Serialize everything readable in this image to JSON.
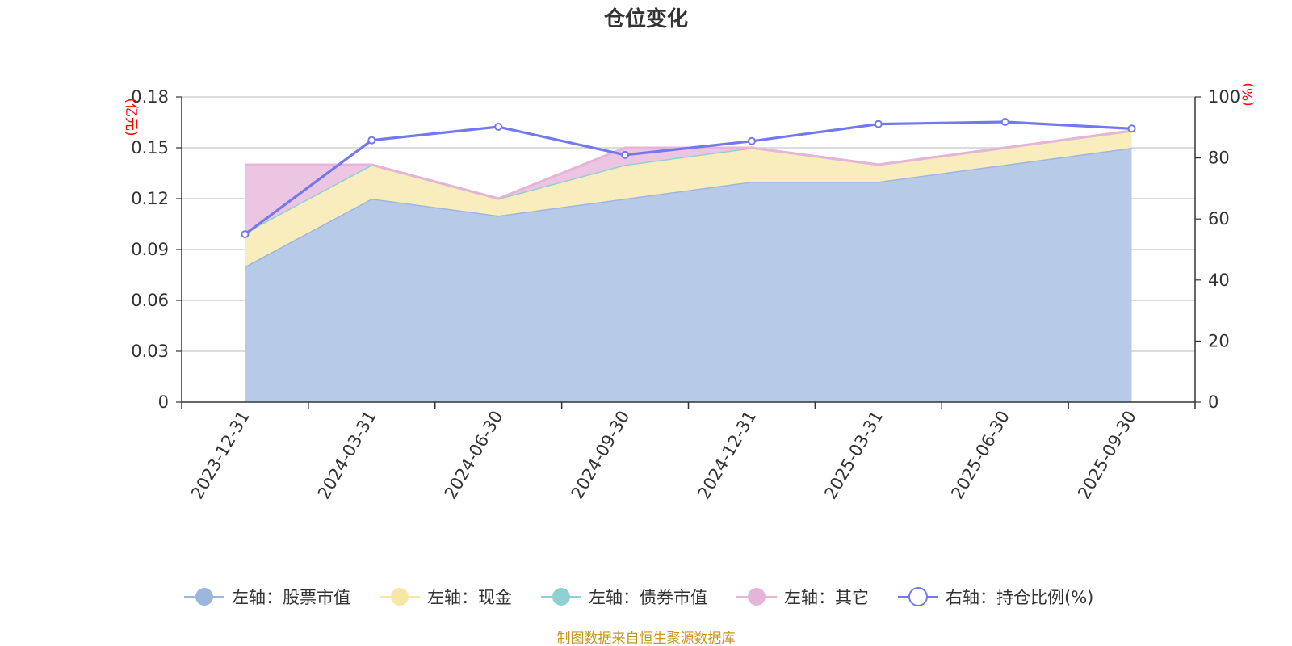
{
  "chart_data": {
    "type": "area",
    "title": "仓位变化",
    "categories": [
      "2023-12-31",
      "2024-03-31",
      "2024-06-30",
      "2024-09-30",
      "2024-12-31",
      "2025-03-31",
      "2025-06-30",
      "2025-09-30"
    ],
    "left_axis": {
      "unit": "(亿元)",
      "ylim": [
        0,
        0.18
      ],
      "ticks": [
        "0",
        "0.03",
        "0.06",
        "0.09",
        "0.12",
        "0.15",
        "0.18"
      ],
      "tick_values": [
        0,
        0.03,
        0.06,
        0.09,
        0.12,
        0.15,
        0.18
      ]
    },
    "right_axis": {
      "unit": "(%)",
      "ylim": [
        0,
        100
      ],
      "ticks": [
        "0",
        "20",
        "40",
        "60",
        "80",
        "100"
      ],
      "tick_values": [
        0,
        20,
        40,
        60,
        80,
        100
      ]
    },
    "series": [
      {
        "name": "左轴：股票市值",
        "axis": "left",
        "kind": "area-stacked",
        "color": "#9db6e0",
        "fill": "#b7cbe9",
        "values": [
          0.08,
          0.12,
          0.11,
          0.12,
          0.13,
          0.13,
          0.14,
          0.15
        ]
      },
      {
        "name": "左轴：现金",
        "axis": "left",
        "kind": "area-stacked",
        "color": "#f8e6a5",
        "fill": "#f9ecbd",
        "values": [
          0.02,
          0.02,
          0.01,
          0.02,
          0.02,
          0.01,
          0.01,
          0.01
        ]
      },
      {
        "name": "左轴：债券市值",
        "axis": "left",
        "kind": "area-stacked",
        "color": "#8fd1d3",
        "fill": "#a8dcdd",
        "values": [
          0,
          0,
          0,
          0,
          0,
          0,
          0,
          0
        ]
      },
      {
        "name": "左轴：其它",
        "axis": "left",
        "kind": "area-stacked",
        "color": "#e6b4d8",
        "fill": "#ebc5e1",
        "values": [
          0.04,
          0,
          0,
          0.01,
          0,
          0,
          0,
          0
        ]
      },
      {
        "name": "右轴：持仓比例(%)",
        "axis": "right",
        "kind": "line",
        "color": "#7279ed",
        "values": [
          55.0,
          85.8,
          90.2,
          81.0,
          85.5,
          91.1,
          91.8,
          89.6
        ]
      }
    ],
    "grid": true,
    "legend_position": "bottom"
  },
  "source_note": "制图数据来自恒生聚源数据库"
}
